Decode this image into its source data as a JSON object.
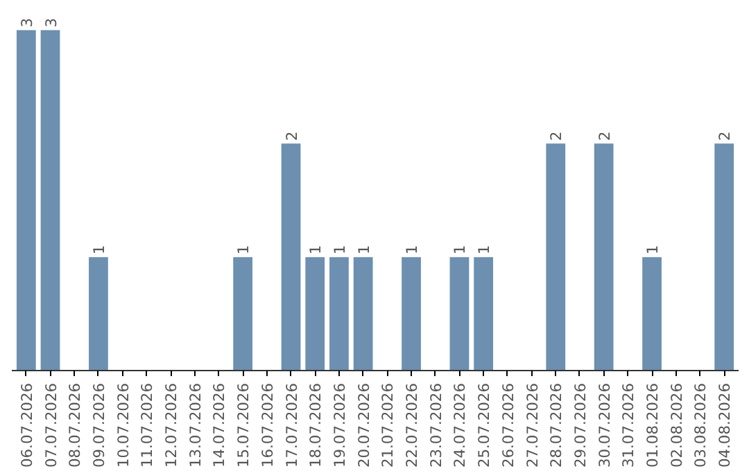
{
  "chart_data": {
    "type": "bar",
    "categories": [
      "06.07.2026",
      "07.07.2026",
      "08.07.2026",
      "09.07.2026",
      "10.07.2026",
      "11.07.2026",
      "12.07.2026",
      "13.07.2026",
      "14.07.2026",
      "15.07.2026",
      "16.07.2026",
      "17.07.2026",
      "18.07.2026",
      "19.07.2026",
      "20.07.2026",
      "21.07.2026",
      "22.07.2026",
      "23.07.2026",
      "24.07.2026",
      "25.07.2026",
      "26.07.2026",
      "27.07.2026",
      "28.07.2026",
      "29.07.2026",
      "30.07.2026",
      "31.07.2026",
      "01.08.2026",
      "02.08.2026",
      "03.08.2026",
      "04.08.2026"
    ],
    "values": [
      3,
      3,
      0,
      1,
      0,
      0,
      0,
      0,
      0,
      1,
      0,
      2,
      1,
      1,
      1,
      0,
      1,
      0,
      1,
      1,
      0,
      0,
      2,
      0,
      2,
      0,
      1,
      0,
      0,
      2
    ],
    "value_labels": [
      "3",
      "3",
      null,
      "1",
      null,
      null,
      null,
      null,
      null,
      "1",
      null,
      "2",
      "1",
      "1",
      "1",
      null,
      "1",
      null,
      "1",
      "1",
      null,
      null,
      "2",
      null,
      "2",
      null,
      "1",
      null,
      null,
      "2"
    ],
    "color": "#6d8fb0",
    "grid": false
  }
}
